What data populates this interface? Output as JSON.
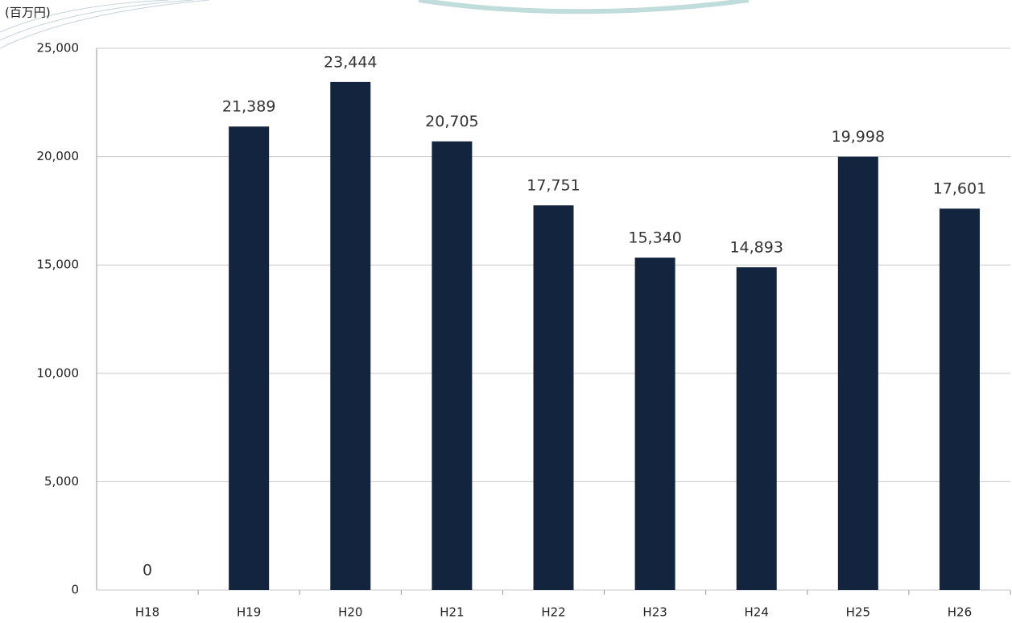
{
  "chart_data": {
    "type": "bar",
    "y_unit_label": "(百万円)",
    "categories": [
      "H18",
      "H19",
      "H20",
      "H21",
      "H22",
      "H23",
      "H24",
      "H25",
      "H26"
    ],
    "values": [
      0,
      21389,
      23444,
      20705,
      17751,
      15340,
      14893,
      19998,
      17601
    ],
    "value_labels": [
      "0",
      "21,389",
      "23,444",
      "20,705",
      "17,751",
      "15,340",
      "14,893",
      "19,998",
      "17,601"
    ],
    "color": "#13243f",
    "ylim": [
      0,
      25000
    ],
    "yticks": [
      0,
      {
        "value": 5000,
        "label": "5,000"
      },
      {
        "value": 10000,
        "label": "10,000"
      },
      {
        "value": 15000,
        "label": "15,000"
      },
      {
        "value": 20000,
        "label": "20,000"
      },
      {
        "value": 25000,
        "label": "25,000"
      }
    ],
    "grid": true
  }
}
